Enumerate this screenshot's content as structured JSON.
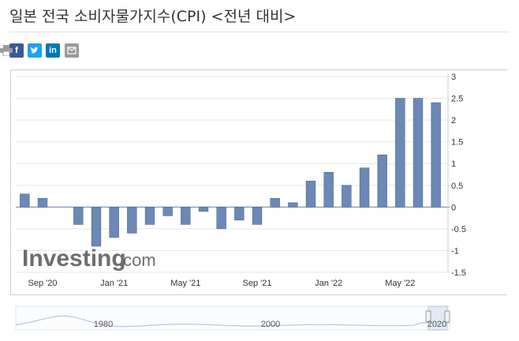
{
  "title": "일본 전국 소비자물가지수(CPI) <전년 대비>",
  "share": {
    "facebook_icon": "facebook-icon",
    "twitter_icon": "twitter-icon",
    "linkedin_icon": "linkedin-icon",
    "email_icon": "email-icon",
    "print_icon": "print-icon"
  },
  "colors": {
    "bar": "#6b88b6",
    "bar_stroke": "#4a6896",
    "zero_line": "#7a8aa6",
    "grid": "#e6e6e6"
  },
  "watermark": {
    "brand": "Investing",
    "suffix": ".com"
  },
  "navigator": {
    "labels": [
      "1980",
      "2000",
      "2020"
    ]
  },
  "chart_data": {
    "type": "bar",
    "categories": [
      "2020-08",
      "2020-09",
      "2020-10",
      "2020-11",
      "2020-12",
      "2021-01",
      "2021-02",
      "2021-03",
      "2021-04",
      "2021-05",
      "2021-06",
      "2021-07",
      "2021-08",
      "2021-09",
      "2021-10",
      "2021-11",
      "2021-12",
      "2022-01",
      "2022-02",
      "2022-03",
      "2022-04",
      "2022-05",
      "2022-06",
      "2022-07"
    ],
    "values": [
      0.3,
      0.2,
      0,
      -0.4,
      -0.9,
      -0.7,
      -0.6,
      -0.4,
      -0.2,
      -0.4,
      -0.1,
      -0.5,
      -0.3,
      -0.4,
      0.2,
      0.1,
      0.6,
      0.8,
      0.5,
      0.9,
      1.2,
      2.5,
      2.5,
      2.4
    ],
    "x_tick_labels": [
      {
        "index": 1,
        "label": "Sep '20"
      },
      {
        "index": 5,
        "label": "Jan '21"
      },
      {
        "index": 9,
        "label": "May '21"
      },
      {
        "index": 13,
        "label": "Sep '21"
      },
      {
        "index": 17,
        "label": "Jan '22"
      },
      {
        "index": 21,
        "label": "May '22"
      }
    ],
    "y_ticks": [
      3,
      2.5,
      2,
      1.5,
      1,
      0.5,
      0,
      -0.5,
      -1,
      -1.5
    ],
    "ylim": [
      -1.5,
      3
    ],
    "y_axis_side": "right",
    "grid": true
  }
}
